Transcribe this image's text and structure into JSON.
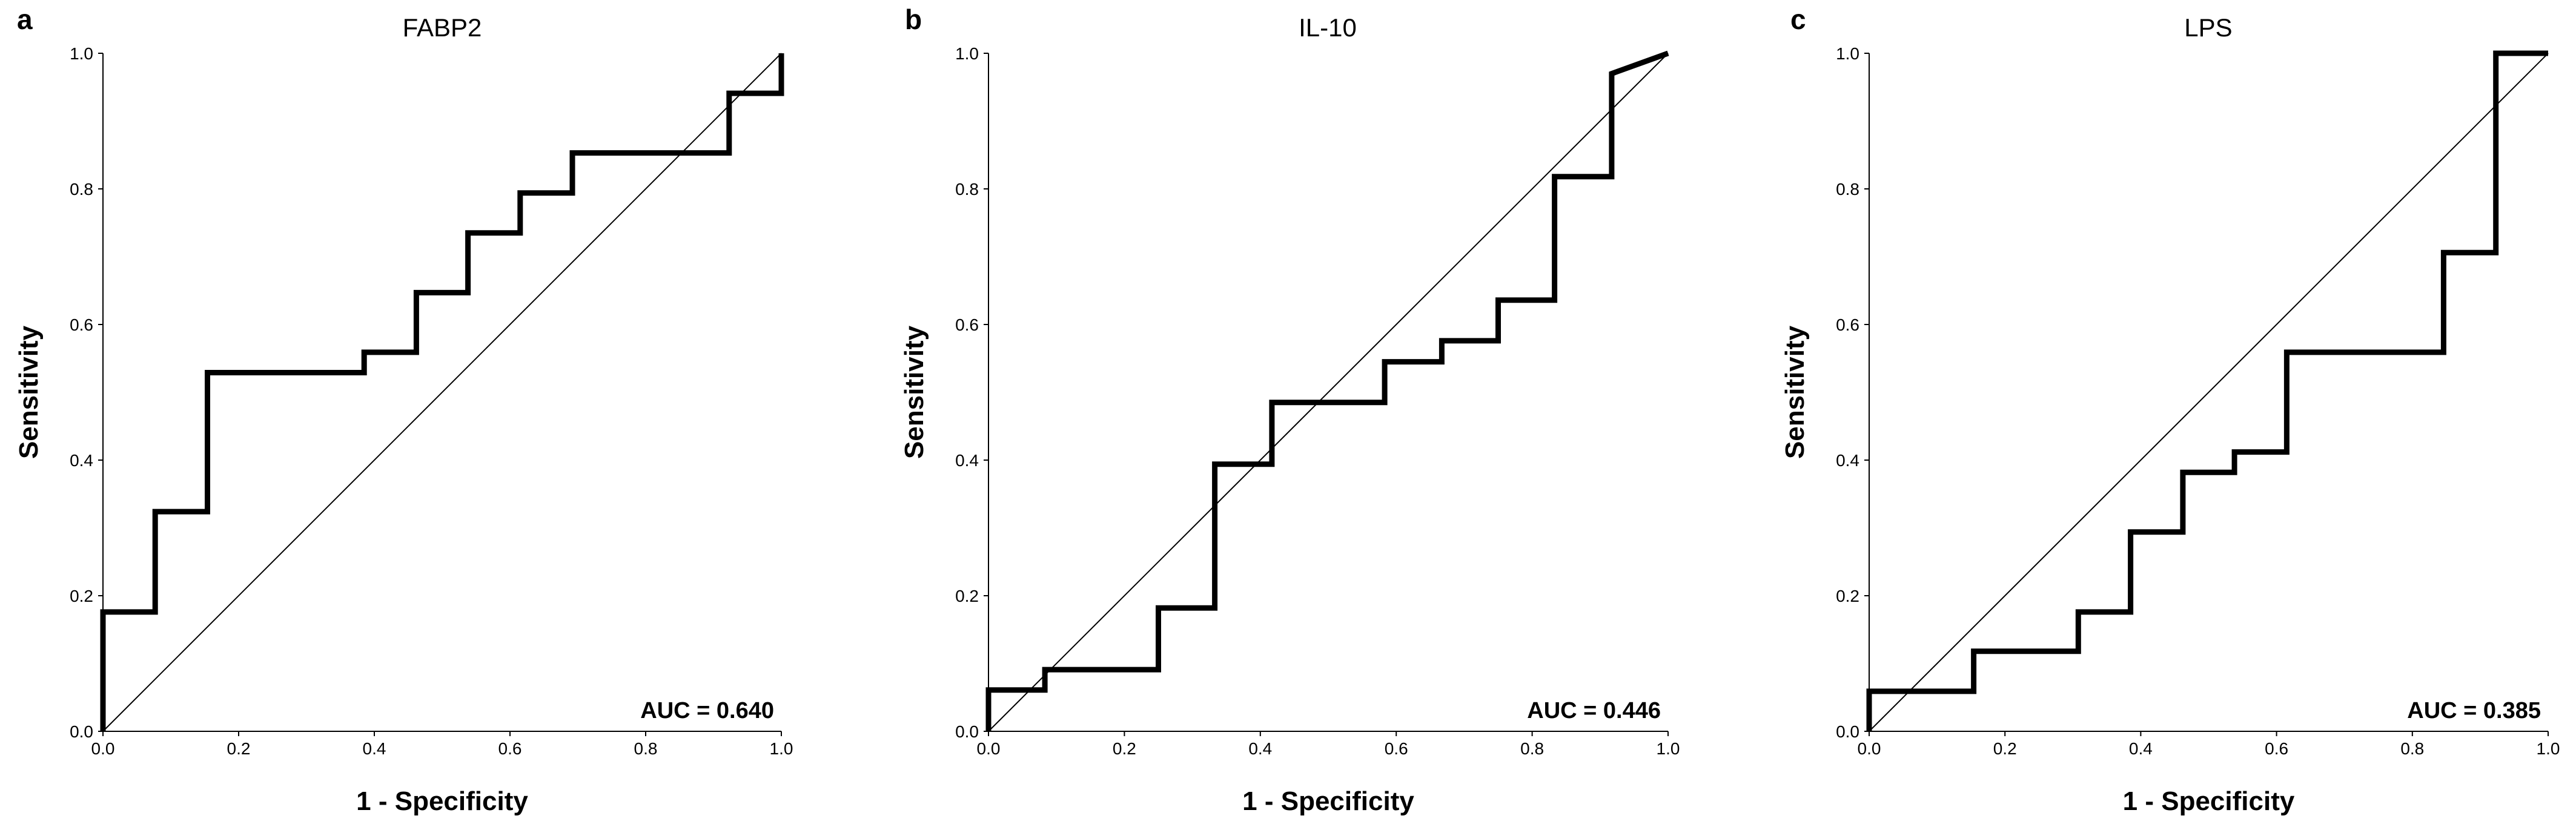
{
  "chart_data": [
    {
      "type": "line",
      "panel_letter": "a",
      "title": "FABP2",
      "xlabel": "1 - Specificity",
      "ylabel": "Sensitivity",
      "xlim": [
        0,
        1
      ],
      "ylim": [
        0,
        1
      ],
      "xticks": [
        "0.0",
        "0.2",
        "0.4",
        "0.6",
        "0.8",
        "1.0"
      ],
      "yticks": [
        "0.0",
        "0.2",
        "0.4",
        "0.6",
        "0.8",
        "1.0"
      ],
      "auc_label": "AUC = 0.640",
      "series": [
        {
          "name": "ROC curve",
          "x": [
            0,
            0,
            0.077,
            0.077,
            0.154,
            0.154,
            0.385,
            0.385,
            0.462,
            0.462,
            0.538,
            0.538,
            0.615,
            0.615,
            0.692,
            0.692,
            0.923,
            0.923,
            1,
            1
          ],
          "y": [
            0,
            0.176,
            0.176,
            0.324,
            0.324,
            0.529,
            0.529,
            0.559,
            0.559,
            0.647,
            0.647,
            0.735,
            0.735,
            0.794,
            0.794,
            0.853,
            0.853,
            0.941,
            0.941,
            1
          ]
        },
        {
          "name": "Reference line",
          "x": [
            0,
            1
          ],
          "y": [
            0,
            1
          ]
        }
      ]
    },
    {
      "type": "line",
      "panel_letter": "b",
      "title": "IL-10",
      "xlabel": "1 - Specificity",
      "ylabel": "Sensitivity",
      "xlim": [
        0,
        1
      ],
      "ylim": [
        0,
        1
      ],
      "xticks": [
        "0.0",
        "0.2",
        "0.4",
        "0.6",
        "0.8",
        "1.0"
      ],
      "yticks": [
        "0.0",
        "0.2",
        "0.4",
        "0.6",
        "0.8",
        "1.0"
      ],
      "auc_label": "AUC = 0.446",
      "series": [
        {
          "name": "ROC curve",
          "x": [
            0,
            0,
            0.083,
            0.083,
            0.25,
            0.25,
            0.333,
            0.333,
            0.417,
            0.417,
            0.583,
            0.583,
            0.667,
            0.667,
            0.75,
            0.75,
            0.833,
            0.833,
            0.917,
            0.917,
            1
          ],
          "y": [
            0,
            0.061,
            0.061,
            0.091,
            0.091,
            0.182,
            0.182,
            0.394,
            0.394,
            0.485,
            0.485,
            0.545,
            0.545,
            0.576,
            0.576,
            0.636,
            0.636,
            0.818,
            0.818,
            0.97,
            1
          ]
        },
        {
          "name": "Reference line",
          "x": [
            0,
            1
          ],
          "y": [
            0,
            1
          ]
        }
      ]
    },
    {
      "type": "line",
      "panel_letter": "c",
      "title": "LPS",
      "xlabel": "1 - Specificity",
      "ylabel": "Sensitivity",
      "xlim": [
        0,
        1
      ],
      "ylim": [
        0,
        1
      ],
      "xticks": [
        "0.0",
        "0.2",
        "0.4",
        "0.6",
        "0.8",
        "1.0"
      ],
      "yticks": [
        "0.0",
        "0.2",
        "0.4",
        "0.6",
        "0.8",
        "1.0"
      ],
      "auc_label": "AUC = 0.385",
      "series": [
        {
          "name": "ROC curve",
          "x": [
            0,
            0,
            0.154,
            0.154,
            0.308,
            0.308,
            0.385,
            0.385,
            0.462,
            0.462,
            0.538,
            0.538,
            0.615,
            0.615,
            0.846,
            0.846,
            0.923,
            0.923,
            1
          ],
          "y": [
            0,
            0.059,
            0.059,
            0.118,
            0.118,
            0.176,
            0.176,
            0.294,
            0.294,
            0.382,
            0.382,
            0.412,
            0.412,
            0.559,
            0.559,
            0.706,
            0.706,
            1,
            1
          ]
        },
        {
          "name": "Reference line",
          "x": [
            0,
            1
          ],
          "y": [
            0,
            1
          ]
        }
      ]
    }
  ]
}
